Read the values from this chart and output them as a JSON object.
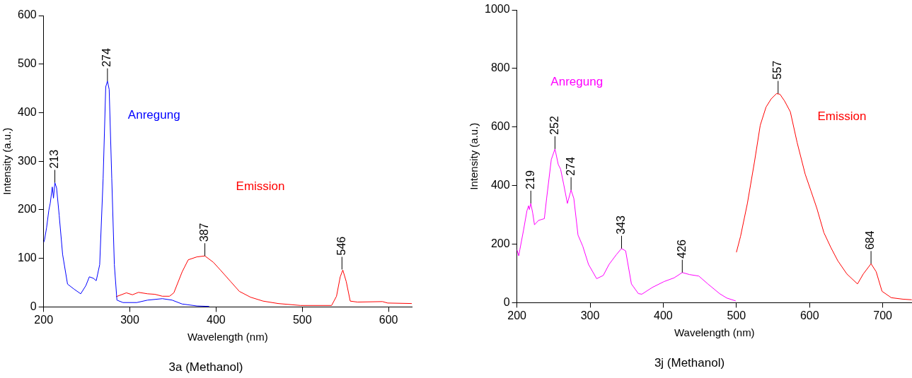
{
  "chart_data": [
    {
      "type": "line",
      "title": "3a (Methanol)",
      "xlabel": "Wavelength (nm)",
      "ylabel": "Intensity (a.u.)",
      "xlim": [
        200,
        627
      ],
      "xticks": [
        200,
        300,
        400,
        500,
        600
      ],
      "ylim": [
        0,
        600
      ],
      "yticks": [
        0,
        100,
        200,
        300,
        400,
        500,
        600
      ],
      "grid": false,
      "legend": false,
      "marker": "none",
      "line_style": "solid",
      "series": [
        {
          "name": "Anregung",
          "color": "#0000ff",
          "x": [
            200,
            201,
            203.4,
            206,
            207.7,
            210,
            211.4,
            213,
            215,
            218,
            222,
            227.7,
            235,
            243,
            249,
            253,
            257.7,
            261,
            265,
            269,
            272,
            274,
            276,
            279,
            282,
            285,
            292,
            308,
            320.6,
            337.7,
            349,
            360.6,
            377.7,
            392
          ],
          "values": [
            133,
            138,
            163,
            199,
            214,
            247,
            224,
            256,
            245,
            189,
            108,
            47,
            37,
            27,
            44,
            62,
            59,
            54,
            87,
            265,
            453,
            465,
            448,
            265,
            87,
            14,
            9,
            9,
            14,
            17,
            14,
            6,
            2,
            1
          ]
        },
        {
          "name": "Emission",
          "color": "#ff0000",
          "x": [
            284,
            296,
            303,
            310,
            320.6,
            329,
            337.7,
            346,
            351,
            360.6,
            367.7,
            377.7,
            387,
            396.8,
            405.5,
            417,
            427,
            440,
            454.5,
            471.9,
            497.8,
            534,
            539.7,
            544,
            547,
            551,
            555.6,
            564,
            593,
            599,
            627
          ],
          "values": [
            21,
            29,
            25,
            30,
            27,
            26,
            22,
            22,
            29,
            72,
            97,
            103,
            105,
            92,
            75,
            52,
            32,
            20,
            12,
            7,
            3,
            3,
            22,
            62,
            76,
            52,
            12,
            10,
            11,
            8,
            7
          ]
        }
      ],
      "annotations": [
        {
          "text": "213",
          "x": 213,
          "y": 256
        },
        {
          "text": "274",
          "x": 274,
          "y": 465
        },
        {
          "text": "387",
          "x": 387,
          "y": 105
        },
        {
          "text": "546",
          "x": 546,
          "y": 77
        }
      ]
    },
    {
      "type": "line",
      "title": "3j (Methanol)",
      "xlabel": "Wavelength (nm)",
      "ylabel": "Intensity (a.u.)",
      "xlim": [
        200,
        740
      ],
      "xticks": [
        200,
        300,
        400,
        500,
        600,
        700
      ],
      "ylim": [
        0,
        1000
      ],
      "yticks": [
        0,
        200,
        400,
        600,
        800,
        1000
      ],
      "grid": false,
      "legend": false,
      "marker": "none",
      "line_style": "solid",
      "series": [
        {
          "name": "Anregung",
          "color": "#ff00ff",
          "x": [
            200,
            202.5,
            204,
            209,
            213.7,
            216,
            217,
            219,
            221.6,
            224,
            229.5,
            237.5,
            240.6,
            247,
            252,
            256.5,
            259.7,
            263.8,
            269,
            274,
            277.8,
            283.5,
            290,
            297.8,
            309,
            318,
            326,
            335.9,
            342.9,
            348.6,
            356.5,
            366,
            370.8,
            385,
            401,
            415,
            426,
            435.9,
            448.6,
            461,
            477,
            486.7,
            499
          ],
          "values": [
            181,
            160,
            181,
            247,
            314,
            331,
            318,
            339,
            306,
            266,
            281,
            287,
            356,
            489,
            525,
            472,
            456,
            406,
            339,
            385,
            356,
            231,
            193,
            131,
            82,
            93,
            131,
            164,
            185,
            177,
            64,
            31,
            29,
            52,
            72,
            85,
            103,
            96,
            91,
            64,
            31,
            16,
            6
          ]
        },
        {
          "name": "Emission",
          "color": "#ff0000",
          "x": [
            500,
            505.7,
            515,
            524.7,
            532.6,
            540.5,
            547.5,
            554.7,
            559.5,
            565.8,
            573.7,
            583,
            594,
            602,
            610,
            619.6,
            629,
            638.6,
            651,
            665.5,
            673.4,
            684,
            691,
            699,
            711.7,
            727.5,
            739.6
          ],
          "values": [
            172,
            227,
            339,
            481,
            606,
            668,
            696,
            714,
            712,
            689,
            652,
            547,
            439,
            381,
            322,
            239,
            189,
            143,
            98,
            64,
            98,
            133,
            106,
            39,
            17,
            12,
            10
          ]
        }
      ],
      "annotations": [
        {
          "text": "219",
          "x": 219,
          "y": 339
        },
        {
          "text": "252",
          "x": 252,
          "y": 525
        },
        {
          "text": "274",
          "x": 274,
          "y": 385
        },
        {
          "text": "343",
          "x": 343,
          "y": 185
        },
        {
          "text": "426",
          "x": 426,
          "y": 103
        },
        {
          "text": "557",
          "x": 557,
          "y": 714
        },
        {
          "text": "684",
          "x": 684,
          "y": 133
        }
      ]
    }
  ]
}
